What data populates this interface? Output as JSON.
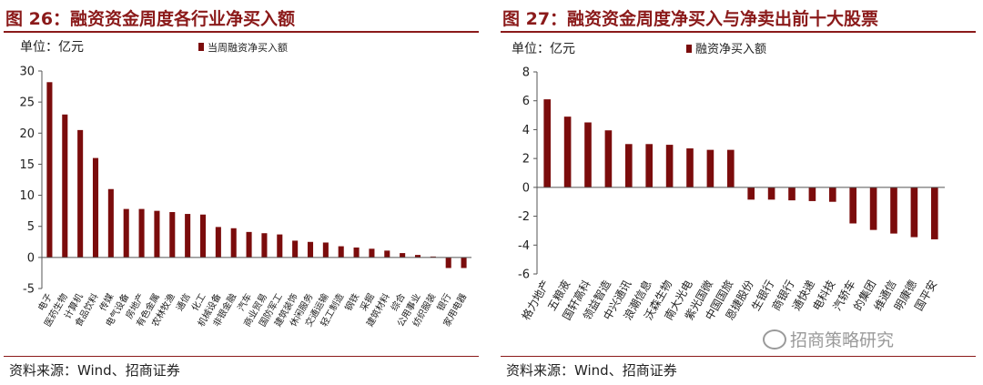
{
  "left": {
    "fig_title": "图 26：融资资金周度各行业净买入额",
    "source": "资料来源：Wind、招商证券",
    "chart_data": {
      "type": "bar",
      "unit_label": "单位：亿元",
      "legend": "当周融资净买入额",
      "bar_color": "#7B0C0C",
      "ylim": [
        -5,
        30
      ],
      "yticks": [
        -5,
        0,
        5,
        10,
        15,
        20,
        25,
        30
      ],
      "categories": [
        "电子",
        "医药生物",
        "计算机",
        "食品饮料",
        "传媒",
        "电气设备",
        "房地产",
        "有色金属",
        "农林牧渔",
        "通信",
        "化工",
        "机械设备",
        "非银金融",
        "汽车",
        "商业贸易",
        "国防军工",
        "建筑装饰",
        "休闲服务",
        "交通运输",
        "轻工制造",
        "钢铁",
        "采掘",
        "建筑材料",
        "综合",
        "公用事业",
        "纺织服装",
        "银行",
        "家用电器"
      ],
      "values": [
        28.2,
        23.0,
        20.5,
        16.0,
        11.0,
        7.8,
        7.8,
        7.5,
        7.3,
        7.0,
        6.9,
        4.9,
        4.7,
        4.1,
        3.9,
        3.7,
        2.7,
        2.5,
        2.4,
        1.8,
        1.6,
        1.4,
        1.1,
        0.7,
        0.4,
        0.15,
        -1.7,
        -1.7
      ]
    }
  },
  "right": {
    "fig_title": "图 27：融资资金周度净买入与净卖出前十大股票",
    "source": "资料来源：Wind、招商证券",
    "chart_data": {
      "type": "bar",
      "unit_label": "单位：亿元",
      "legend": "融资净买入额",
      "bar_color": "#7B0C0C",
      "ylim": [
        -6,
        8
      ],
      "yticks": [
        -6,
        -4,
        -2,
        0,
        2,
        4,
        6,
        8
      ],
      "categories": [
        "格力地产",
        "五粮液",
        "国轩高科",
        "领益智造",
        "中兴通讯",
        "浪潮信息",
        "沃森生物",
        "南大光电",
        "紫光国微",
        "中国国旅",
        "恩捷股份",
        "生银行",
        "商银行",
        "通快递",
        "电科技",
        "汽轿车",
        "的集团",
        "维通信",
        "明康德",
        "国平安"
      ],
      "values": [
        6.1,
        4.9,
        4.5,
        3.95,
        3.0,
        3.0,
        2.95,
        2.7,
        2.6,
        2.6,
        -0.85,
        -0.85,
        -0.9,
        -0.95,
        -1.0,
        -2.5,
        -2.95,
        -3.2,
        -3.45,
        -3.6
      ]
    }
  },
  "watermark": "招商策略研究"
}
